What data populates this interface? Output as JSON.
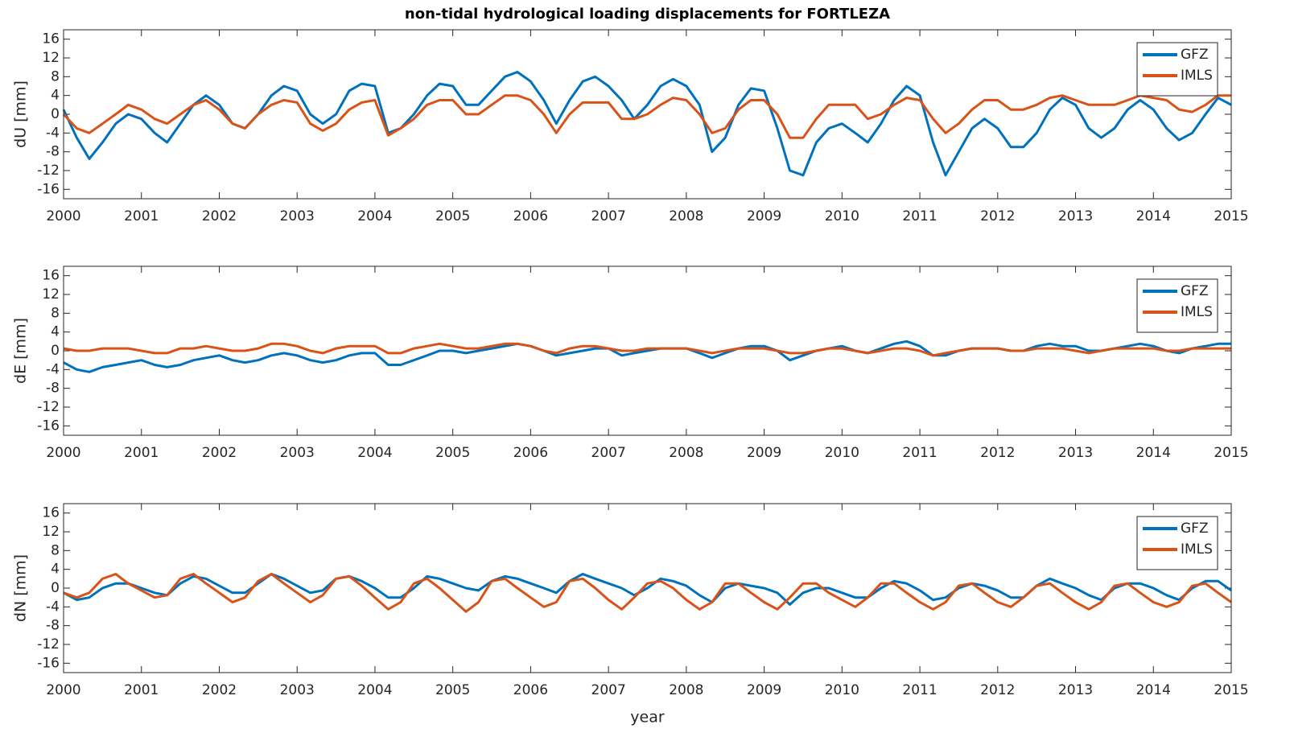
{
  "chart_data": [
    {
      "type": "line",
      "title": "non-tidal hydrological loading displacements for FORTLEZA",
      "ylabel": "dU [mm]",
      "xlim": [
        2000,
        2015
      ],
      "xticks": [
        2000,
        2001,
        2002,
        2003,
        2004,
        2005,
        2006,
        2007,
        2008,
        2009,
        2010,
        2011,
        2012,
        2013,
        2014,
        2015
      ],
      "ylim": [
        -18,
        18
      ],
      "yticks": [
        -16,
        -12,
        -8,
        -4,
        0,
        4,
        8,
        12,
        16
      ],
      "grid": false,
      "legend": "northeast",
      "x": [
        2000,
        2000.17,
        2000.33,
        2000.5,
        2000.67,
        2000.83,
        2001,
        2001.17,
        2001.33,
        2001.5,
        2001.67,
        2001.83,
        2002,
        2002.17,
        2002.33,
        2002.5,
        2002.67,
        2002.83,
        2003,
        2003.17,
        2003.33,
        2003.5,
        2003.67,
        2003.83,
        2004,
        2004.17,
        2004.33,
        2004.5,
        2004.67,
        2004.83,
        2005,
        2005.17,
        2005.33,
        2005.5,
        2005.67,
        2005.83,
        2006,
        2006.17,
        2006.33,
        2006.5,
        2006.67,
        2006.83,
        2007,
        2007.17,
        2007.33,
        2007.5,
        2007.67,
        2007.83,
        2008,
        2008.17,
        2008.33,
        2008.5,
        2008.67,
        2008.83,
        2009,
        2009.17,
        2009.33,
        2009.5,
        2009.67,
        2009.83,
        2010,
        2010.17,
        2010.33,
        2010.5,
        2010.67,
        2010.83,
        2011,
        2011.17,
        2011.33,
        2011.5,
        2011.67,
        2011.83,
        2012,
        2012.17,
        2012.33,
        2012.5,
        2012.67,
        2012.83,
        2013,
        2013.17,
        2013.33,
        2013.5,
        2013.67,
        2013.83,
        2014,
        2014.17,
        2014.33,
        2014.5,
        2014.67,
        2014.83,
        2015
      ],
      "series": [
        {
          "name": "GFZ",
          "color": "#0072BD",
          "values": [
            1,
            -5,
            -9.5,
            -6,
            -2,
            0,
            -1,
            -4,
            -6,
            -2,
            2,
            4,
            2,
            -2,
            -3,
            0,
            4,
            6,
            5,
            0,
            -2,
            0,
            5,
            6.5,
            6,
            -4,
            -3,
            0,
            4,
            6.5,
            6,
            2,
            2,
            5,
            8,
            9,
            7,
            3,
            -2,
            3,
            7,
            8,
            6,
            3,
            -1,
            2,
            6,
            7.5,
            6,
            2,
            -8,
            -5,
            2,
            5.5,
            5,
            -3,
            -12,
            -13,
            -6,
            -3,
            -2,
            -4,
            -6,
            -2,
            3,
            6,
            4,
            -6,
            -13,
            -8,
            -3,
            -1,
            -3,
            -7,
            -7,
            -4,
            1,
            3.5,
            2,
            -3,
            -5,
            -3,
            1,
            3,
            1,
            -3,
            -5.5,
            -4,
            0,
            3.5,
            2
          ]
        },
        {
          "name": "IMLS",
          "color": "#D95319",
          "values": [
            0,
            -3,
            -4,
            -2,
            0,
            2,
            1,
            -1,
            -2,
            0,
            2,
            3,
            1,
            -2,
            -3,
            0,
            2,
            3,
            2.5,
            -2,
            -3.5,
            -2,
            1,
            2.5,
            3,
            -4.5,
            -3,
            -1,
            2,
            3,
            3,
            0,
            0,
            2,
            4,
            4,
            3,
            0,
            -4,
            0,
            2.5,
            2.5,
            2.5,
            -1,
            -1,
            0,
            2,
            3.5,
            3,
            0,
            -4,
            -3,
            1,
            3,
            3,
            0,
            -5,
            -5,
            -1,
            2,
            2,
            2,
            -1,
            0,
            2,
            3.5,
            3,
            -1,
            -4,
            -2,
            1,
            3,
            3,
            1,
            1,
            2,
            3.5,
            4,
            3,
            2,
            2,
            2,
            3,
            4,
            3.5,
            3,
            1,
            0.5,
            2,
            4,
            4
          ]
        }
      ]
    },
    {
      "type": "line",
      "ylabel": "dE [mm]",
      "xlim": [
        2000,
        2015
      ],
      "xticks": [
        2000,
        2001,
        2002,
        2003,
        2004,
        2005,
        2006,
        2007,
        2008,
        2009,
        2010,
        2011,
        2012,
        2013,
        2014,
        2015
      ],
      "ylim": [
        -18,
        18
      ],
      "yticks": [
        -16,
        -12,
        -8,
        -4,
        0,
        4,
        8,
        12,
        16
      ],
      "grid": false,
      "legend": "northeast",
      "x": [
        2000,
        2000.17,
        2000.33,
        2000.5,
        2000.67,
        2000.83,
        2001,
        2001.17,
        2001.33,
        2001.5,
        2001.67,
        2001.83,
        2002,
        2002.17,
        2002.33,
        2002.5,
        2002.67,
        2002.83,
        2003,
        2003.17,
        2003.33,
        2003.5,
        2003.67,
        2003.83,
        2004,
        2004.17,
        2004.33,
        2004.5,
        2004.67,
        2004.83,
        2005,
        2005.17,
        2005.33,
        2005.5,
        2005.67,
        2005.83,
        2006,
        2006.17,
        2006.33,
        2006.5,
        2006.67,
        2006.83,
        2007,
        2007.17,
        2007.33,
        2007.5,
        2007.67,
        2007.83,
        2008,
        2008.17,
        2008.33,
        2008.5,
        2008.67,
        2008.83,
        2009,
        2009.17,
        2009.33,
        2009.5,
        2009.67,
        2009.83,
        2010,
        2010.17,
        2010.33,
        2010.5,
        2010.67,
        2010.83,
        2011,
        2011.17,
        2011.33,
        2011.5,
        2011.67,
        2011.83,
        2012,
        2012.17,
        2012.33,
        2012.5,
        2012.67,
        2012.83,
        2013,
        2013.17,
        2013.33,
        2013.5,
        2013.67,
        2013.83,
        2014,
        2014.17,
        2014.33,
        2014.5,
        2014.67,
        2014.83,
        2015
      ],
      "series": [
        {
          "name": "GFZ",
          "color": "#0072BD",
          "values": [
            -2.5,
            -4,
            -4.5,
            -3.5,
            -3,
            -2.5,
            -2,
            -3,
            -3.5,
            -3,
            -2,
            -1.5,
            -1,
            -2,
            -2.5,
            -2,
            -1,
            -0.5,
            -1,
            -2,
            -2.5,
            -2,
            -1,
            -0.5,
            -0.5,
            -3,
            -3,
            -2,
            -1,
            0,
            0,
            -0.5,
            0,
            0.5,
            1,
            1.5,
            1,
            0,
            -1,
            -0.5,
            0,
            0.5,
            0.5,
            -1,
            -0.5,
            0,
            0.5,
            0.5,
            0.5,
            -0.5,
            -1.5,
            -0.5,
            0.5,
            1,
            1,
            0,
            -2,
            -1,
            0,
            0.5,
            1,
            0,
            -0.5,
            0.5,
            1.5,
            2,
            1,
            -1,
            -1,
            0,
            0.5,
            0.5,
            0.5,
            0,
            0,
            1,
            1.5,
            1,
            1,
            0,
            0,
            0.5,
            1,
            1.5,
            1,
            0,
            -0.5,
            0.5,
            1,
            1.5,
            1.5
          ]
        },
        {
          "name": "IMLS",
          "color": "#D95319",
          "values": [
            0.5,
            0,
            0,
            0.5,
            0.5,
            0.5,
            0,
            -0.5,
            -0.5,
            0.5,
            0.5,
            1,
            0.5,
            0,
            0,
            0.5,
            1.5,
            1.5,
            1,
            0,
            -0.5,
            0.5,
            1,
            1,
            1,
            -0.5,
            -0.5,
            0.5,
            1,
            1.5,
            1,
            0.5,
            0.5,
            1,
            1.5,
            1.5,
            1,
            0,
            -0.5,
            0.5,
            1,
            1,
            0.5,
            0,
            0,
            0.5,
            0.5,
            0.5,
            0.5,
            0,
            -0.5,
            0,
            0.5,
            0.5,
            0.5,
            0,
            -0.5,
            -0.5,
            0,
            0.5,
            0.5,
            0,
            -0.5,
            0,
            0.5,
            0.5,
            0,
            -1,
            -0.5,
            0,
            0.5,
            0.5,
            0.5,
            0,
            0,
            0.5,
            0.5,
            0.5,
            0,
            -0.5,
            0,
            0.5,
            0.5,
            0.5,
            0.5,
            0,
            0,
            0.5,
            0.5,
            0.5,
            0.5
          ]
        }
      ]
    },
    {
      "type": "line",
      "ylabel": "dN [mm]",
      "xlabel": "year",
      "xlim": [
        2000,
        2015
      ],
      "xticks": [
        2000,
        2001,
        2002,
        2003,
        2004,
        2005,
        2006,
        2007,
        2008,
        2009,
        2010,
        2011,
        2012,
        2013,
        2014,
        2015
      ],
      "ylim": [
        -18,
        18
      ],
      "yticks": [
        -16,
        -12,
        -8,
        -4,
        0,
        4,
        8,
        12,
        16
      ],
      "grid": false,
      "legend": "northeast",
      "x": [
        2000,
        2000.17,
        2000.33,
        2000.5,
        2000.67,
        2000.83,
        2001,
        2001.17,
        2001.33,
        2001.5,
        2001.67,
        2001.83,
        2002,
        2002.17,
        2002.33,
        2002.5,
        2002.67,
        2002.83,
        2003,
        2003.17,
        2003.33,
        2003.5,
        2003.67,
        2003.83,
        2004,
        2004.17,
        2004.33,
        2004.5,
        2004.67,
        2004.83,
        2005,
        2005.17,
        2005.33,
        2005.5,
        2005.67,
        2005.83,
        2006,
        2006.17,
        2006.33,
        2006.5,
        2006.67,
        2006.83,
        2007,
        2007.17,
        2007.33,
        2007.5,
        2007.67,
        2007.83,
        2008,
        2008.17,
        2008.33,
        2008.5,
        2008.67,
        2008.83,
        2009,
        2009.17,
        2009.33,
        2009.5,
        2009.67,
        2009.83,
        2010,
        2010.17,
        2010.33,
        2010.5,
        2010.67,
        2010.83,
        2011,
        2011.17,
        2011.33,
        2011.5,
        2011.67,
        2011.83,
        2012,
        2012.17,
        2012.33,
        2012.5,
        2012.67,
        2012.83,
        2013,
        2013.17,
        2013.33,
        2013.5,
        2013.67,
        2013.83,
        2014,
        2014.17,
        2014.33,
        2014.5,
        2014.67,
        2014.83,
        2015
      ],
      "series": [
        {
          "name": "GFZ",
          "color": "#0072BD",
          "values": [
            -1,
            -2.5,
            -2,
            0,
            1,
            1,
            0,
            -1,
            -1.5,
            1,
            2.5,
            2,
            0.5,
            -1,
            -1,
            1,
            3,
            2,
            0.5,
            -1,
            -0.5,
            2,
            2.5,
            1.5,
            0,
            -2,
            -2,
            0,
            2.5,
            2,
            1,
            0,
            -0.5,
            1.5,
            2.5,
            2,
            1,
            0,
            -1,
            1.5,
            3,
            2,
            1,
            0,
            -1.5,
            0,
            2,
            1.5,
            0.5,
            -1.5,
            -3,
            0,
            1,
            0.5,
            0,
            -1,
            -3.5,
            -1,
            0,
            0,
            -1,
            -2,
            -2,
            0,
            1.5,
            1,
            -0.5,
            -2.5,
            -2,
            0,
            1,
            0.5,
            -0.5,
            -2,
            -2,
            0.5,
            2,
            1,
            0,
            -1.5,
            -2.5,
            0,
            1,
            1,
            0,
            -1.5,
            -2.5,
            0,
            1.5,
            1.5,
            -0.5
          ]
        },
        {
          "name": "IMLS",
          "color": "#D95319",
          "values": [
            -1,
            -2,
            -1,
            2,
            3,
            1,
            -0.5,
            -2,
            -1.5,
            2,
            3,
            1,
            -1,
            -3,
            -2,
            1.5,
            3,
            1,
            -1,
            -3,
            -1.5,
            2,
            2.5,
            0.5,
            -2,
            -4.5,
            -3,
            1,
            2,
            0,
            -2.5,
            -5,
            -3,
            1.5,
            2,
            0,
            -2,
            -4,
            -3,
            1.5,
            2,
            0,
            -2.5,
            -4.5,
            -2,
            1,
            1.5,
            0,
            -2.5,
            -4.5,
            -3,
            1,
            1,
            -1,
            -3,
            -4.5,
            -2,
            1,
            1,
            -1,
            -2.5,
            -4,
            -2,
            1,
            1,
            -1,
            -3,
            -4.5,
            -3,
            0.5,
            1,
            -1,
            -3,
            -4,
            -2,
            0.5,
            1,
            -1,
            -3,
            -4.5,
            -3,
            0.5,
            1,
            -1,
            -3,
            -4,
            -3,
            0.5,
            1,
            -1,
            -3
          ]
        }
      ]
    }
  ]
}
